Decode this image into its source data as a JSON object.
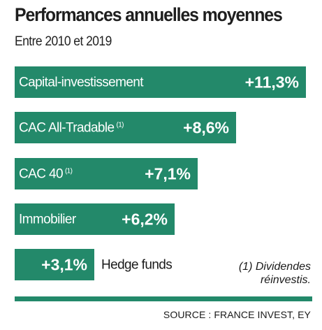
{
  "title": "Performances annuelles moyennes",
  "subtitle": "Entre 2010 et 2019",
  "footnote": {
    "line1": "(1) Dividendes",
    "line2": "réinvestis."
  },
  "source": "SOURCE : FRANCE INVEST, EY",
  "colors": {
    "bar": "#23896a",
    "text_on_bar": "#ffffff",
    "rule": "#23896a"
  },
  "chart_data": {
    "type": "bar",
    "orientation": "horizontal",
    "title": "Performances annuelles moyennes",
    "subtitle": "Entre 2010 et 2019",
    "categories": [
      "Capital-investissement",
      "CAC All-Tradable",
      "CAC 40",
      "Immobilier",
      "Hedge funds"
    ],
    "category_notes": [
      "",
      "(1)",
      "(1)",
      "",
      ""
    ],
    "values": [
      11.3,
      8.6,
      7.1,
      6.2,
      3.1
    ],
    "value_labels": [
      "+11,3%",
      "+8,6%",
      "+7,1%",
      "+6,2%",
      "+3,1%"
    ],
    "unit": "%",
    "grid": false,
    "legend": "none"
  }
}
